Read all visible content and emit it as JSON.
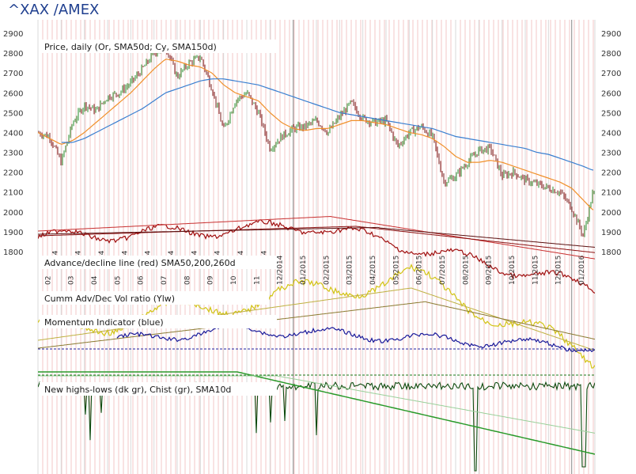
{
  "window_title": "^XAX /AMEX",
  "chart_data": {
    "type": "line",
    "title": "^XAX /AMEX",
    "y_ticks": [
      2900,
      2800,
      2700,
      2600,
      2500,
      2400,
      2300,
      2200,
      2100,
      2000,
      1900,
      1800
    ],
    "ylim": [
      1800,
      2900
    ],
    "month_labels": [
      "02",
      "03",
      "04",
      "05",
      "06",
      "07",
      "08",
      "09",
      "10",
      "11",
      "12/2014",
      "01/2015",
      "02/2015",
      "03/2015",
      "04/2015",
      "05/2015",
      "06/2015",
      "07/2015",
      "08/2015",
      "09/2015",
      "10/2015",
      "11/2015",
      "12/2015",
      "01/2016"
    ],
    "year_labels": [
      "14",
      "14",
      "14",
      "14",
      "14",
      "14",
      "14",
      "14",
      "14",
      "14"
    ],
    "panels": [
      {
        "label": "Price, daily (Or, SMA50d; Cy, SMA150d)"
      },
      {
        "label": "Advance/decline line (red) SMA50,200,260d"
      },
      {
        "label": "Cumm Adv/Dec Vol ratio (Ylw)"
      },
      {
        "label": "Momentum Indicator (blue)"
      },
      {
        "label": "New highs-lows (dk gr), Chist (gr), SMA10d"
      }
    ],
    "price": {
      "months": [
        0,
        0.5,
        1,
        1.5,
        2,
        2.5,
        3,
        3.5,
        4,
        4.5,
        5,
        5.5,
        6,
        6.5,
        7,
        7.5,
        8,
        8.5,
        9,
        9.5,
        10,
        10.5,
        11,
        11.5,
        12,
        12.5,
        13,
        13.5,
        14,
        14.5,
        15,
        15.5,
        16,
        16.5,
        17,
        17.5,
        18,
        18.5,
        19,
        19.5,
        20,
        20.5,
        21,
        21.5,
        22,
        22.5,
        23,
        23.5,
        23.9
      ],
      "close": [
        2400,
        2380,
        2250,
        2450,
        2540,
        2510,
        2580,
        2600,
        2650,
        2720,
        2800,
        2830,
        2680,
        2750,
        2780,
        2620,
        2410,
        2560,
        2600,
        2500,
        2320,
        2380,
        2420,
        2430,
        2460,
        2400,
        2480,
        2550,
        2470,
        2450,
        2460,
        2330,
        2400,
        2430,
        2380,
        2150,
        2180,
        2250,
        2310,
        2320,
        2180,
        2200,
        2160,
        2140,
        2120,
        2100,
        2020,
        1880,
        2090
      ],
      "sma50": [
        2400,
        2370,
        2340,
        2360,
        2400,
        2450,
        2500,
        2550,
        2600,
        2660,
        2720,
        2770,
        2760,
        2740,
        2730,
        2700,
        2640,
        2600,
        2580,
        2560,
        2500,
        2450,
        2420,
        2410,
        2420,
        2420,
        2440,
        2460,
        2460,
        2450,
        2440,
        2420,
        2400,
        2390,
        2370,
        2330,
        2280,
        2250,
        2250,
        2260,
        2250,
        2230,
        2210,
        2190,
        2170,
        2150,
        2120,
        2060,
        2010
      ],
      "sma150": [
        null,
        null,
        null,
        2350,
        2370,
        2400,
        2430,
        2460,
        2490,
        2520,
        2560,
        2600,
        2620,
        2640,
        2660,
        2670,
        2670,
        2660,
        2650,
        2640,
        2620,
        2600,
        2580,
        2560,
        2540,
        2520,
        2500,
        2490,
        2480,
        2470,
        2460,
        2450,
        2440,
        2430,
        2420,
        2400,
        2380,
        2370,
        2360,
        2350,
        2340,
        2330,
        2320,
        2300,
        2290,
        2270,
        2250,
        2230,
        2210
      ]
    }
  }
}
